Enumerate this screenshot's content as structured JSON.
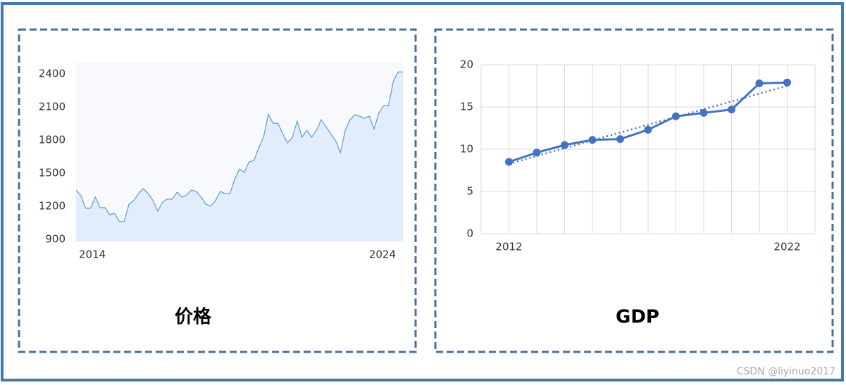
{
  "chart_data": [
    {
      "type": "area",
      "title": "价格",
      "color": "#5b9bd5",
      "fill": "#e2edfc",
      "categories": [
        "2014",
        null,
        null,
        null,
        null,
        null,
        null,
        null,
        null,
        null,
        null,
        null,
        null,
        null,
        null,
        null,
        null,
        null,
        null,
        null,
        null,
        null,
        null,
        null,
        null,
        null,
        null,
        null,
        null,
        null,
        null,
        null,
        null,
        null,
        null,
        null,
        null,
        null,
        null,
        null,
        null,
        null,
        null,
        null,
        null,
        null,
        null,
        null,
        null,
        null,
        null,
        null,
        null,
        null,
        null,
        null,
        null,
        null,
        null,
        null,
        null,
        null,
        null,
        null,
        null,
        null,
        null,
        null,
        "2024"
      ],
      "values": [
        1347,
        1296,
        1181,
        1181,
        1283,
        1187,
        1187,
        1123,
        1136,
        1060,
        1060,
        1219,
        1251,
        1315,
        1360,
        1315,
        1251,
        1155,
        1238,
        1264,
        1264,
        1328,
        1283,
        1302,
        1347,
        1334,
        1283,
        1219,
        1200,
        1251,
        1334,
        1315,
        1315,
        1443,
        1538,
        1506,
        1602,
        1615,
        1730,
        1826,
        2036,
        1953,
        1953,
        1857,
        1774,
        1826,
        1972,
        1826,
        1889,
        1826,
        1889,
        1985,
        1921,
        1857,
        1794,
        1685,
        1889,
        1985,
        2030,
        2017,
        1998,
        2017,
        1902,
        2049,
        2113,
        2113,
        2336,
        2419,
        2419
      ],
      "ylim": [
        880,
        2510
      ],
      "yticks": [
        900,
        1200,
        1500,
        1800,
        2100,
        2400
      ]
    },
    {
      "type": "line",
      "title": "GDP",
      "color": "#4472c4",
      "trendline": true,
      "grid": true,
      "x": [
        2012,
        2013,
        2014,
        2015,
        2016,
        2017,
        2018,
        2019,
        2020,
        2021,
        2022
      ],
      "values": [
        8.5,
        9.6,
        10.5,
        11.1,
        11.2,
        12.3,
        13.9,
        14.3,
        14.7,
        17.8,
        17.9
      ],
      "xlim": [
        2011,
        2023
      ],
      "xticks": [
        2012,
        2022
      ],
      "ylim": [
        0,
        20
      ],
      "yticks": [
        0,
        5,
        10,
        15,
        20
      ]
    }
  ],
  "watermark": "CSDN @liyinuo2017"
}
